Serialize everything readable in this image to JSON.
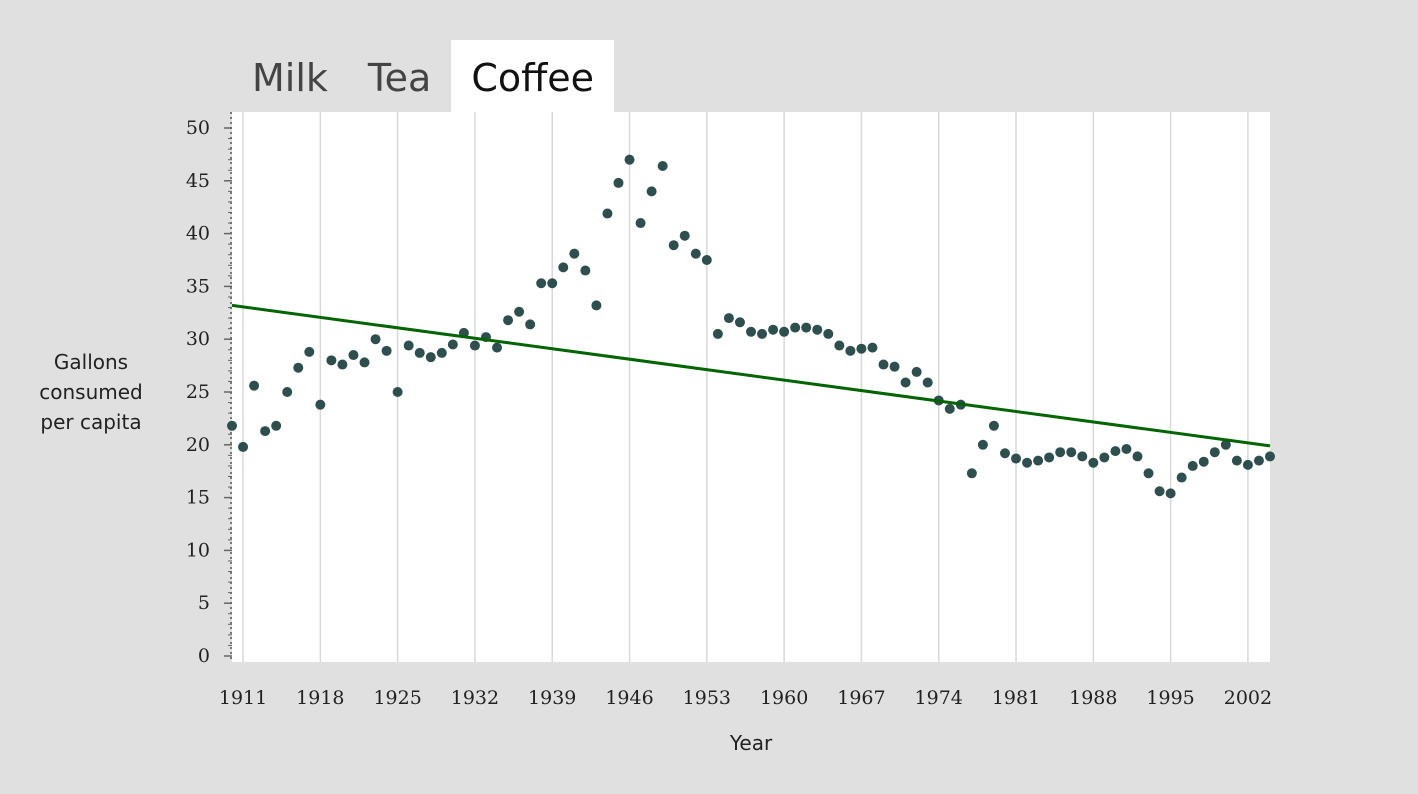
{
  "tabs": [
    {
      "label": "Milk",
      "active": false
    },
    {
      "label": "Tea",
      "active": false
    },
    {
      "label": "Coffee",
      "active": true
    }
  ],
  "chart_data": {
    "type": "scatter",
    "title": "",
    "xlabel": "Year",
    "ylabel_lines": [
      "Gallons",
      "consumed",
      "per capita"
    ],
    "xlim": [
      1910,
      2004
    ],
    "ylim": [
      0,
      50
    ],
    "xticks": [
      1911,
      1918,
      1925,
      1932,
      1939,
      1946,
      1953,
      1960,
      1967,
      1974,
      1981,
      1988,
      1995,
      2002
    ],
    "yticks": [
      0,
      5,
      10,
      15,
      20,
      25,
      30,
      35,
      40,
      45,
      50
    ],
    "grid": "vertical",
    "colors": {
      "points": "#2f4f4f",
      "trendline": "#006400",
      "plot_bg": "#ffffff",
      "grid": "#d8d8d8"
    },
    "series": [
      {
        "x": [
          1910,
          1911,
          1912,
          1913,
          1914,
          1915,
          1916,
          1917,
          1918,
          1919,
          1920,
          1921,
          1922,
          1923,
          1924,
          1925,
          1926,
          1927,
          1928,
          1929,
          1930,
          1931,
          1932,
          1933,
          1934,
          1935,
          1936,
          1937,
          1938,
          1939,
          1940,
          1941,
          1942,
          1943,
          1944,
          1945,
          1946,
          1947,
          1948,
          1949,
          1950,
          1951,
          1952,
          1953,
          1954,
          1955,
          1956,
          1957,
          1958,
          1959,
          1960,
          1961,
          1962,
          1963,
          1964,
          1965,
          1966,
          1967,
          1968,
          1969,
          1970,
          1971,
          1972,
          1973,
          1974,
          1975,
          1976,
          1977,
          1978,
          1979,
          1980,
          1981,
          1982,
          1983,
          1984,
          1985,
          1986,
          1987,
          1988,
          1989,
          1990,
          1991,
          1992,
          1993,
          1994,
          1995,
          1996,
          1997,
          1998,
          1999,
          2000,
          2001,
          2002,
          2003,
          2004
        ],
        "y": [
          21.8,
          19.8,
          25.6,
          21.3,
          21.8,
          25.0,
          27.3,
          28.8,
          23.8,
          28.0,
          27.6,
          28.5,
          27.8,
          30.0,
          28.9,
          25.0,
          29.4,
          28.7,
          28.3,
          28.7,
          29.5,
          30.6,
          29.4,
          30.2,
          29.2,
          31.8,
          32.6,
          31.4,
          35.3,
          35.3,
          36.8,
          38.1,
          36.5,
          33.2,
          41.9,
          44.8,
          47.0,
          41.0,
          44.0,
          46.4,
          38.9,
          39.8,
          38.1,
          37.5,
          30.5,
          32.0,
          31.6,
          30.7,
          30.5,
          30.9,
          30.7,
          31.1,
          31.1,
          30.9,
          30.5,
          29.4,
          28.9,
          29.1,
          29.2,
          27.6,
          27.4,
          25.9,
          26.9,
          25.9,
          24.2,
          23.4,
          23.8,
          17.3,
          20.0,
          21.8,
          19.2,
          18.7,
          18.3,
          18.5,
          18.8,
          19.3,
          19.3,
          18.9,
          18.3,
          18.8,
          19.4,
          19.6,
          18.9,
          17.3,
          15.6,
          15.4,
          16.9,
          18.0,
          18.4,
          19.3,
          20.0,
          18.5,
          18.1,
          18.5,
          18.9
        ]
      }
    ],
    "trendline": {
      "x": [
        1910,
        2004
      ],
      "y": [
        33.2,
        19.9
      ]
    }
  }
}
